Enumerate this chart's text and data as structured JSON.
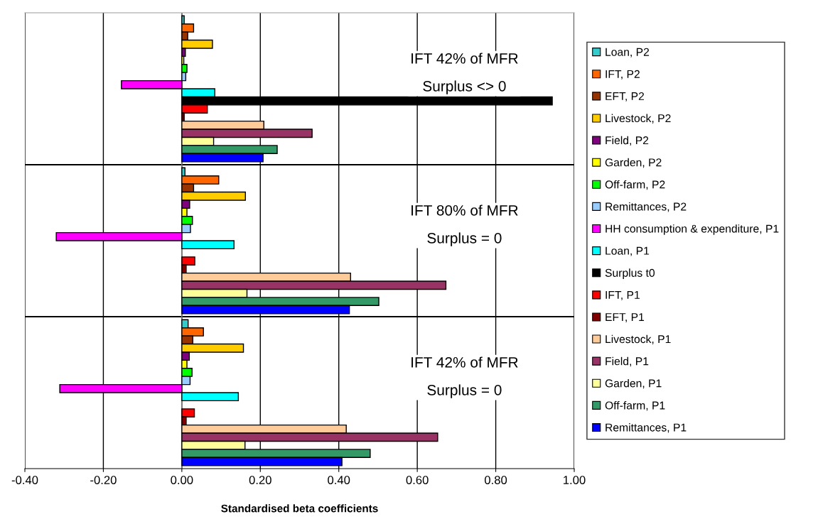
{
  "chart_data": {
    "type": "bar",
    "orientation": "horizontal",
    "categories": [
      null,
      null,
      null
    ],
    "xlabel": "Standardised beta coefficients",
    "xlim": [
      -0.4,
      1.0
    ],
    "xticks": [
      {
        "value": -0.4,
        "label": "-0.40"
      },
      {
        "value": -0.2,
        "label": "-0.20"
      },
      {
        "value": 0,
        "label": "0.00"
      },
      {
        "value": 0.2,
        "label": "0.20"
      },
      {
        "value": 0.4,
        "label": "0.40"
      },
      {
        "value": 0.6,
        "label": "0.60"
      },
      {
        "value": 0.8,
        "label": "0.80"
      },
      {
        "value": 1.0,
        "label": "1.00"
      }
    ],
    "grid": true,
    "legend": "right",
    "annotations": [
      "IFT 42% of MFR\nSurplus <> 0",
      "IFT 80% of MFR\nSurplus = 0",
      "IFT 42% of MFR\nSurplus = 0"
    ],
    "series": [
      {
        "name": "Loan, P2",
        "color": "#33cccc",
        "values": [
          0.006,
          0.008,
          0.016
        ]
      },
      {
        "name": "IFT, P2",
        "color": "#ff6600",
        "values": [
          0.03,
          0.094,
          0.055
        ]
      },
      {
        "name": "EFT, P2",
        "color": "#993300",
        "values": [
          0.015,
          0.03,
          0.028
        ]
      },
      {
        "name": "Livestock, P2",
        "color": "#ffcc00",
        "values": [
          0.078,
          0.162,
          0.157
        ]
      },
      {
        "name": "Field, P2",
        "color": "#800080",
        "values": [
          0.009,
          0.02,
          0.019
        ]
      },
      {
        "name": "Garden, P2",
        "color": "#ffff00",
        "values": [
          0.005,
          0.013,
          0.013
        ]
      },
      {
        "name": "Off-farm, P2",
        "color": "#00ff00",
        "values": [
          0.013,
          0.027,
          0.026
        ]
      },
      {
        "name": "Remittances, P2",
        "color": "#99ccff",
        "values": [
          0.01,
          0.022,
          0.021
        ]
      },
      {
        "name": "HH consumption & expenditure, P1",
        "color": "#ff00ff",
        "values": [
          -0.154,
          -0.32,
          -0.311
        ]
      },
      {
        "name": "Loan, P1",
        "color": "#00ffff",
        "values": [
          0.084,
          0.133,
          0.144
        ]
      },
      {
        "name": "Surplus t0",
        "color": "#000000",
        "values": [
          0.944,
          null,
          null
        ]
      },
      {
        "name": "IFT, P1",
        "color": "#ff0000",
        "values": [
          0.065,
          0.033,
          0.032
        ]
      },
      {
        "name": "EFT, P1",
        "color": "#800000",
        "values": [
          0.006,
          0.011,
          0.011
        ]
      },
      {
        "name": "Livestock, P1",
        "color": "#ffcc99",
        "values": [
          0.209,
          0.43,
          0.419
        ]
      },
      {
        "name": "Field, P1",
        "color": "#993366",
        "values": [
          0.332,
          0.673,
          0.652
        ]
      },
      {
        "name": "Garden, P1",
        "color": "#ffff99",
        "values": [
          0.081,
          0.166,
          0.161
        ]
      },
      {
        "name": "Off-farm, P1",
        "color": "#339966",
        "values": [
          0.243,
          0.502,
          0.48
        ]
      },
      {
        "name": "Remittances, P1",
        "color": "#0000ff",
        "values": [
          0.207,
          0.427,
          0.408
        ]
      }
    ]
  }
}
